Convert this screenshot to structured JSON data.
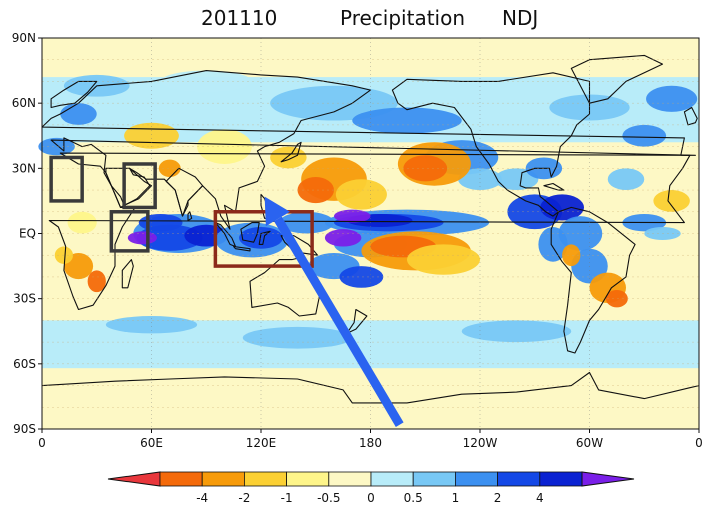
{
  "title": {
    "date": "201110",
    "variable": "Precipitation",
    "season": "NDJ"
  },
  "lat_labels": [
    "90N",
    "60N",
    "30N",
    "EQ",
    "30S",
    "60S",
    "90S"
  ],
  "lon_labels": [
    "0",
    "60E",
    "120E",
    "180",
    "120W",
    "60W",
    "0"
  ],
  "colorbar": {
    "ticks": [
      "-4",
      "-2",
      "-1",
      "-0.5",
      "0",
      "0.5",
      "1",
      "2",
      "4"
    ],
    "colors": [
      "#e9373c",
      "#f46a0a",
      "#f79b0a",
      "#fbd033",
      "#fef58a",
      "#fdf8c5",
      "#b8ecf9",
      "#78c8f5",
      "#3c90f0",
      "#1448e6",
      "#0a22d2",
      "#7a1fe8"
    ]
  },
  "map": {
    "projection": "equirectangular",
    "lat_range": [
      -90,
      90
    ],
    "lon_range": [
      0,
      360
    ],
    "land_outline_color": "#111111",
    "boxes": [
      {
        "name": "west-africa-box",
        "lon": [
          5,
          22
        ],
        "lat": [
          15,
          35
        ],
        "color": "#3a3a3a"
      },
      {
        "name": "arabia-box",
        "lon": [
          45,
          62
        ],
        "lat": [
          12,
          32
        ],
        "color": "#3a3a3a"
      },
      {
        "name": "east-africa-box",
        "lon": [
          38,
          58
        ],
        "lat": [
          -8,
          10
        ],
        "color": "#3a3a3a"
      },
      {
        "name": "maritime-continent-box",
        "lon": [
          95,
          148
        ],
        "lat": [
          -15,
          10
        ],
        "color": "#8b2a1a"
      }
    ],
    "arrow": {
      "from_lon": 196,
      "from_lat": -88,
      "to_lon": 122,
      "to_lat": 17,
      "color": "#2a63f0"
    }
  }
}
